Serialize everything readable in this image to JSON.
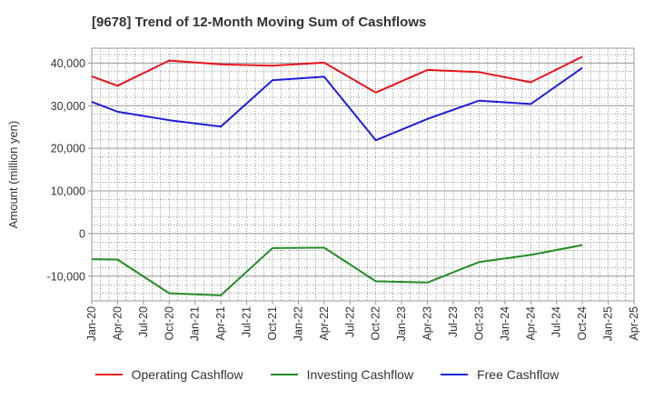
{
  "chart_data": {
    "type": "line",
    "title": "[9678]  Trend of 12-Month Moving Sum of Cashflows",
    "xlabel": "",
    "ylabel": "Amount (million yen)",
    "x_tick_labels": [
      "Jan-20",
      "Apr-20",
      "Jul-20",
      "Oct-20",
      "Jan-21",
      "Apr-21",
      "Jul-21",
      "Oct-21",
      "Jan-22",
      "Apr-22",
      "Jul-22",
      "Oct-22",
      "Jan-23",
      "Apr-23",
      "Jul-23",
      "Oct-23",
      "Jan-24",
      "Apr-24",
      "Jul-24",
      "Oct-24",
      "Jan-25",
      "Apr-25"
    ],
    "y_ticks": [
      -10000,
      0,
      10000,
      20000,
      30000,
      40000
    ],
    "y_tick_labels": [
      "-10,000",
      "0",
      "10,000",
      "20,000",
      "30,000",
      "40,000"
    ],
    "ylim": [
      -15800,
      43500
    ],
    "grid": true,
    "legend_position": "bottom",
    "series": [
      {
        "name": "Operating Cashflow",
        "color": "#e8141b",
        "x": [
          "Jan-20",
          "Apr-20",
          "Oct-20",
          "Apr-21",
          "Oct-21",
          "Apr-22",
          "Oct-22",
          "Apr-23",
          "Oct-23",
          "Apr-24",
          "Oct-24"
        ],
        "values": [
          36900,
          34700,
          40600,
          39700,
          39400,
          40100,
          33100,
          38400,
          37900,
          35500,
          41500
        ]
      },
      {
        "name": "Investing Cashflow",
        "color": "#238c23",
        "x": [
          "Jan-20",
          "Apr-20",
          "Oct-20",
          "Apr-21",
          "Oct-21",
          "Apr-22",
          "Oct-22",
          "Apr-23",
          "Oct-23",
          "Apr-24",
          "Oct-24"
        ],
        "values": [
          -6000,
          -6100,
          -14000,
          -14500,
          -3400,
          -3300,
          -11200,
          -11500,
          -6700,
          -5000,
          -2700
        ]
      },
      {
        "name": "Free Cashflow",
        "color": "#1f1fd6",
        "x": [
          "Jan-20",
          "Apr-20",
          "Oct-20",
          "Apr-21",
          "Oct-21",
          "Apr-22",
          "Oct-22",
          "Apr-23",
          "Oct-23",
          "Apr-24",
          "Oct-24"
        ],
        "values": [
          30900,
          28600,
          26600,
          25100,
          36000,
          36800,
          21900,
          26900,
          31200,
          30400,
          38900
        ]
      }
    ]
  }
}
